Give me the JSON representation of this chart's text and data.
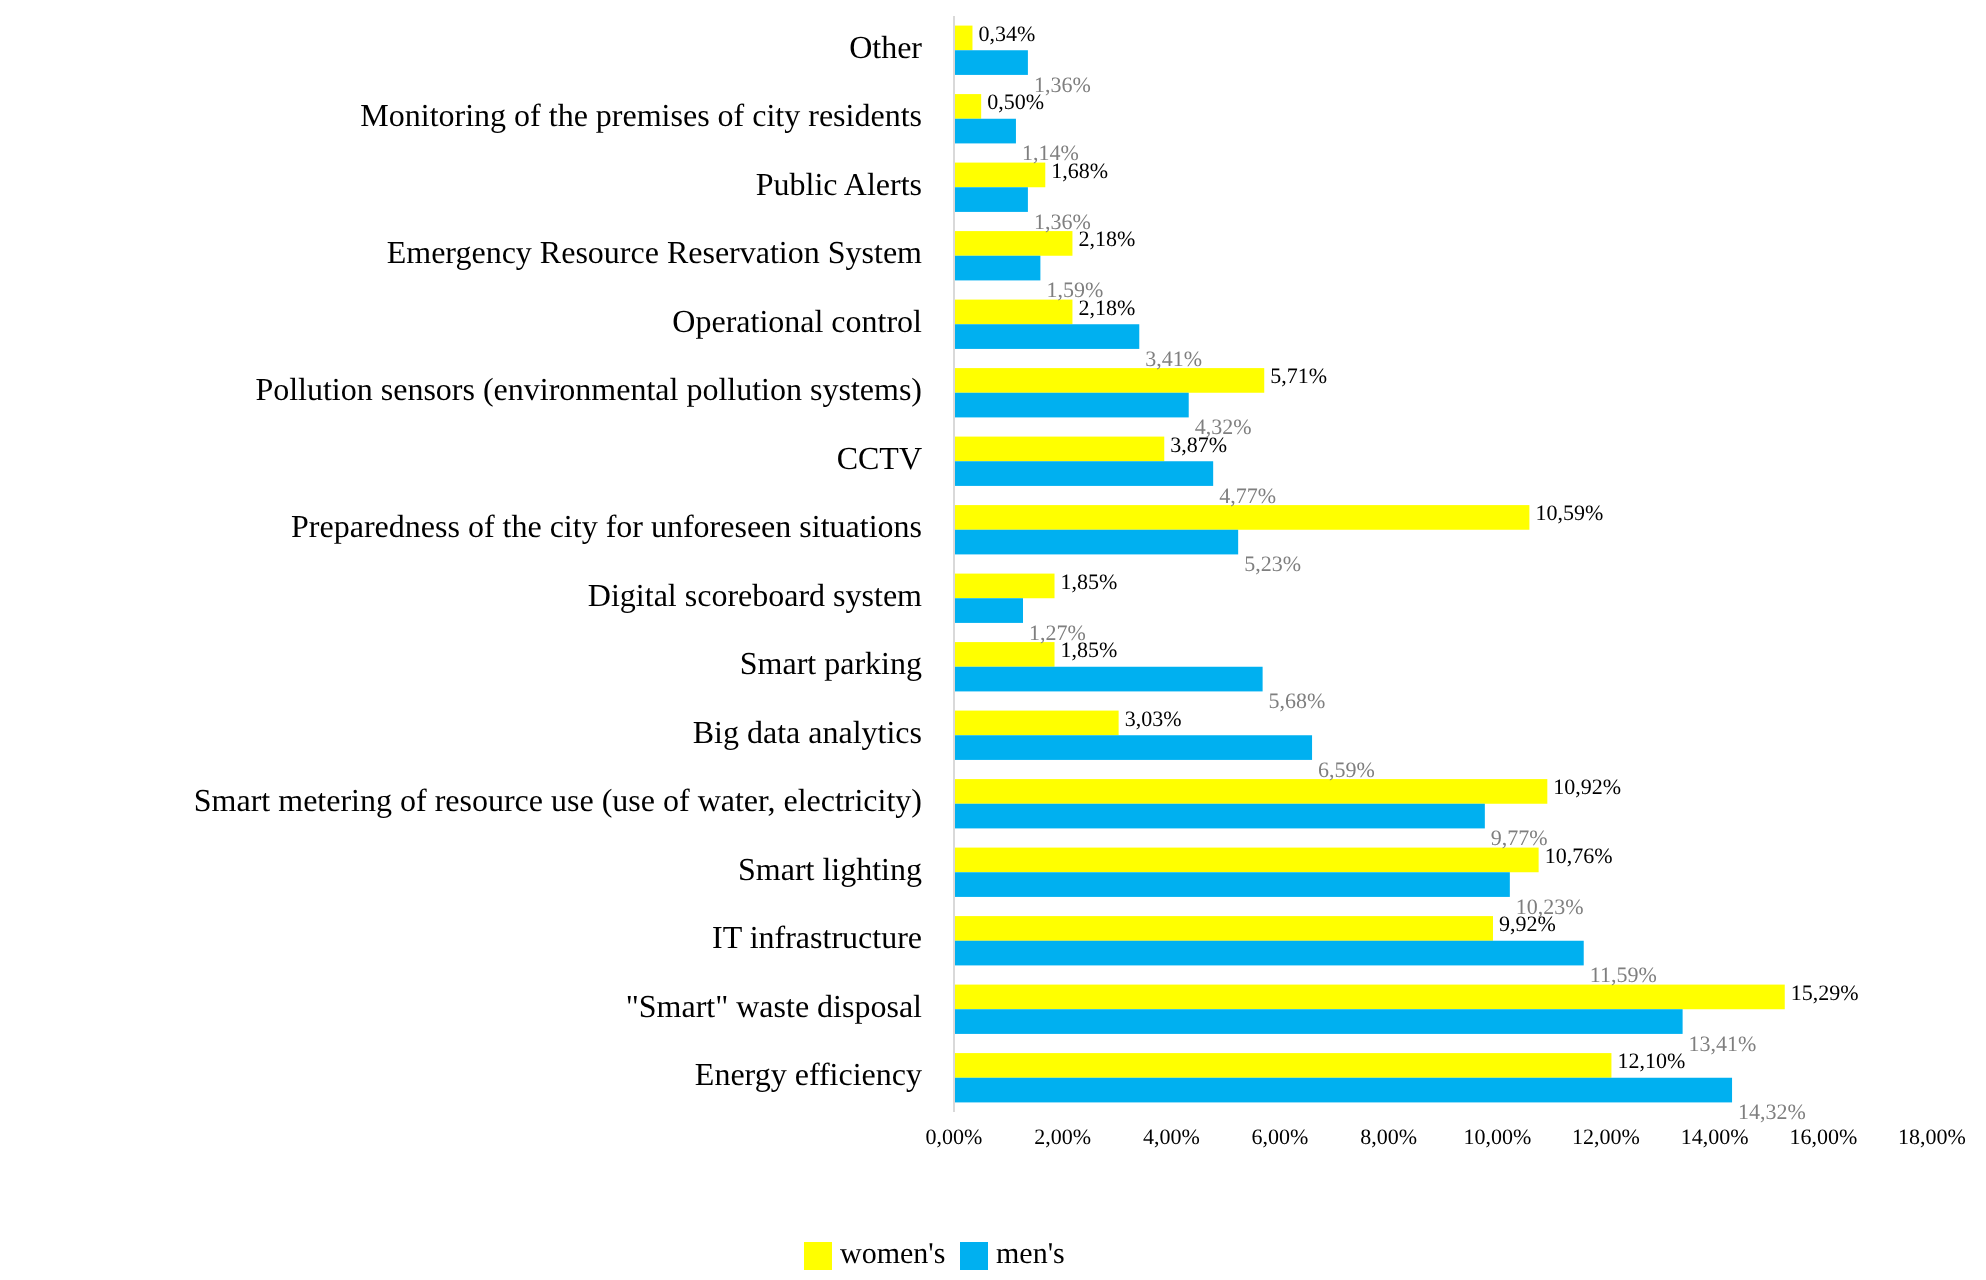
{
  "chart_data": {
    "type": "bar",
    "orientation": "horizontal",
    "categories": [
      "Other",
      "Monitoring of the premises of city residents",
      "Public Alerts",
      "Emergency Resource Reservation System",
      "Operational control ",
      "Pollution sensors (environmental pollution systems)",
      "CCTV",
      "Preparedness of the city for unforeseen situations",
      "Digital scoreboard system",
      "Smart parking",
      "Big data analytics",
      "Smart metering of resource use (use of water, electricity)",
      "Smart lighting",
      "IT infrastructure",
      "\"Smart\" waste disposal",
      "Energy efficiency"
    ],
    "series": [
      {
        "name": "women's",
        "color": "#ffff00",
        "values": [
          0.34,
          0.5,
          1.68,
          2.18,
          2.18,
          5.71,
          3.87,
          10.59,
          1.85,
          1.85,
          3.03,
          10.92,
          10.76,
          9.92,
          15.29,
          12.1
        ],
        "value_labels": [
          "0,34%",
          "0,50%",
          "1,68%",
          "2,18%",
          "2,18%",
          "5,71%",
          "3,87%",
          "10,59%",
          "1,85%",
          "1,85%",
          "3,03%",
          "10,92%",
          "10,76%",
          "9,92%",
          "15,29%",
          "12,10%"
        ]
      },
      {
        "name": "men's",
        "color": "#00b0f0",
        "values": [
          1.36,
          1.14,
          1.36,
          1.59,
          3.41,
          4.32,
          4.77,
          5.23,
          1.27,
          5.68,
          6.59,
          9.77,
          10.23,
          11.59,
          13.41,
          14.32
        ],
        "value_labels": [
          "1,36%",
          "1,14%",
          "1,36%",
          "1,59%",
          "3,41%",
          "4,32%",
          "4,77%",
          "5,23%",
          "1,27%",
          "5,68%",
          "6,59%",
          "9,77%",
          "10,23%",
          "11,59%",
          "13,41%",
          "14,32%"
        ]
      }
    ],
    "xlim": [
      0,
      18
    ],
    "xticks": [
      {
        "value": 0,
        "label": "0,00%"
      },
      {
        "value": 2,
        "label": "2,00%"
      },
      {
        "value": 4,
        "label": "4,00%"
      },
      {
        "value": 6,
        "label": "6,00%"
      },
      {
        "value": 8,
        "label": "8,00%"
      },
      {
        "value": 10,
        "label": "10,00%"
      },
      {
        "value": 12,
        "label": "12,00%"
      },
      {
        "value": 14,
        "label": "14,00%"
      },
      {
        "value": 16,
        "label": "16,00%"
      },
      {
        "value": 18,
        "label": "18,00%"
      }
    ],
    "grid": false,
    "legend": "bottom"
  }
}
